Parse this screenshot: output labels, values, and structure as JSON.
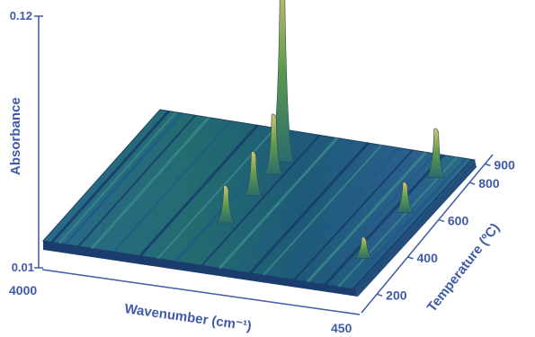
{
  "chart_data": {
    "type": "surface",
    "ylabel": "Absorbance",
    "xlabel": "Wavenumber (cm⁻¹)",
    "zlabel": "Temperature (ºC)",
    "zlim": [
      0.01,
      0.12
    ],
    "z_ticks": [
      "0.12",
      "0.01"
    ],
    "x_ticks": [
      "4000",
      "450"
    ],
    "xlim": [
      4000,
      450
    ],
    "y_ticks": [
      "200",
      "400",
      "600",
      "800",
      "900"
    ],
    "ylim": [
      100,
      950
    ],
    "peaks": [
      {
        "wavenumber": 2360,
        "temperature": 780,
        "absorbance": 0.09
      },
      {
        "wavenumber": 2330,
        "temperature": 700,
        "absorbance": 0.035
      },
      {
        "wavenumber": 2340,
        "temperature": 560,
        "absorbance": 0.028
      },
      {
        "wavenumber": 2370,
        "temperature": 380,
        "absorbance": 0.025
      },
      {
        "wavenumber": 700,
        "temperature": 830,
        "absorbance": 0.03
      },
      {
        "wavenumber": 690,
        "temperature": 600,
        "absorbance": 0.022
      },
      {
        "wavenumber": 680,
        "temperature": 300,
        "absorbance": 0.018
      }
    ],
    "colors": {
      "surface_low": "#1f4f7a",
      "surface_mid": "#2a7f6a",
      "peak_high": "#c8b24a",
      "axis": "#3f5aa8"
    }
  }
}
